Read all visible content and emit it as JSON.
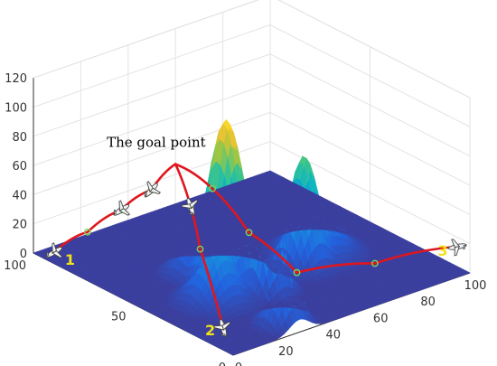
{
  "chart_data": {
    "type": "surface",
    "title": "",
    "xlabel": "",
    "ylabel": "",
    "zlabel": "",
    "xlim": [
      0,
      100
    ],
    "ylim": [
      0,
      100
    ],
    "zlim": [
      0,
      120
    ],
    "x_ticks": [
      "0",
      "20",
      "40",
      "60",
      "80",
      "100"
    ],
    "y_ticks": [
      "0",
      "50",
      "100"
    ],
    "z_ticks": [
      "0",
      "20",
      "40",
      "60",
      "80",
      "100",
      "120"
    ],
    "grid": true,
    "colormap": "parula",
    "annotation": "The goal point",
    "goal_point": [
      22,
      55,
      80
    ],
    "start_labels": [
      "1",
      "2",
      "3"
    ],
    "peaks": [
      {
        "x": 35,
        "y": 45,
        "height": 110
      },
      {
        "x": 40,
        "y": 30,
        "height": 80
      },
      {
        "x": 62,
        "y": 38,
        "height": 75
      },
      {
        "x": 22,
        "y": 35,
        "height": 45
      },
      {
        "x": 28,
        "y": 8,
        "height": 65
      },
      {
        "x": 70,
        "y": 42,
        "height": 40
      },
      {
        "x": 30,
        "y": 55,
        "height": 35
      }
    ],
    "paths": [
      {
        "start": "1",
        "points": [
          [
            2,
            92,
            5
          ],
          [
            6,
            80,
            25
          ],
          [
            11,
            69,
            45
          ],
          [
            16,
            60,
            62
          ],
          [
            22,
            55,
            80
          ]
        ]
      },
      {
        "start": "2",
        "points": [
          [
            0,
            5,
            15
          ],
          [
            8,
            26,
            50
          ],
          [
            15,
            39,
            66
          ],
          [
            22,
            55,
            80
          ]
        ]
      },
      {
        "start": "3",
        "points": [
          [
            99,
            5,
            15
          ],
          [
            70,
            12,
            15
          ],
          [
            48,
            25,
            12
          ],
          [
            32,
            30,
            45
          ],
          [
            25,
            40,
            72
          ],
          [
            22,
            55,
            80
          ]
        ]
      }
    ],
    "colors": {
      "path": "#e0161e",
      "waypoint": "#7ad45a",
      "label": "#f2e21a",
      "floor": "#3b3f9e"
    }
  }
}
